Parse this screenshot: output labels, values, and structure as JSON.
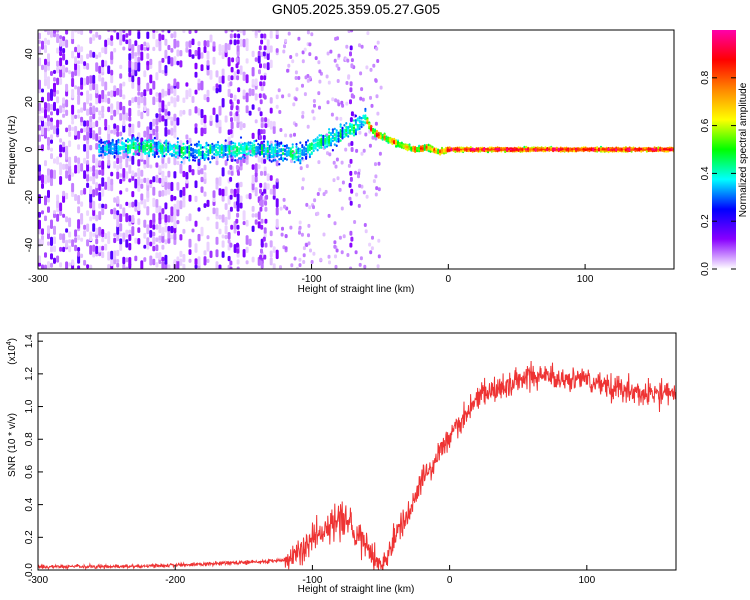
{
  "title": "GN05.2025.359.05.27.G05",
  "chart_data": [
    {
      "type": "heatmap",
      "name": "spectrogram",
      "xlabel": "Height of straight line (km)",
      "ylabel": "Frequency (Hz)",
      "xlim": [
        -300,
        165
      ],
      "ylim": [
        -50,
        50
      ],
      "xticks": [
        -300,
        -200,
        -100,
        0,
        100
      ],
      "yticks": [
        -40,
        -20,
        0,
        20,
        40
      ],
      "colorbar": {
        "label": "Normalized spectral amplitude",
        "range": [
          0,
          1
        ],
        "ticks": [
          0.0,
          0.2,
          0.4,
          0.6,
          0.8
        ],
        "tick_labels": [
          "0.0",
          "0.2",
          "0.4",
          "0.6",
          "0.8"
        ],
        "colormap": [
          "#ffffff",
          "#8800ff",
          "#0000ff",
          "#00ffff",
          "#00ff00",
          "#ffff00",
          "#ff8800",
          "#ff0000",
          "#ff00aa"
        ]
      },
      "ridge": {
        "x": [
          -255,
          -240,
          -220,
          -200,
          -180,
          -160,
          -140,
          -125,
          -110,
          -95,
          -80,
          -70,
          -62,
          -55,
          -48,
          -40,
          -32,
          -24,
          -16,
          -8,
          0,
          20,
          50,
          100,
          165
        ],
        "y": [
          0,
          1,
          1,
          0,
          -1,
          0,
          0,
          -1,
          -2,
          3,
          6,
          9,
          13,
          7,
          5,
          3,
          1,
          0,
          1,
          -1,
          0,
          0,
          0,
          0,
          0
        ]
      }
    },
    {
      "type": "line",
      "name": "snr",
      "xlabel": "Height of straight line (km)",
      "ylabel": "SNR (10 * v/v)",
      "ylabel_multiplier": "(x10",
      "ylabel_exponent": "4",
      "ylabel_multiplier_close": ")",
      "xlim": [
        -300,
        165
      ],
      "ylim": [
        0,
        1.45
      ],
      "xticks": [
        -300,
        -200,
        -100,
        0,
        100
      ],
      "yticks": [
        0.0,
        0.2,
        0.4,
        0.6,
        0.8,
        1.0,
        1.2,
        1.4
      ],
      "ytick_labels": [
        "0.0",
        "0.2",
        "0.4",
        "0.6",
        "0.8",
        "1.0",
        "1.2",
        "1.4"
      ],
      "color": "#ee3333",
      "x": [
        -300,
        -250,
        -200,
        -170,
        -140,
        -120,
        -110,
        -100,
        -90,
        -80,
        -70,
        -60,
        -55,
        -50,
        -45,
        -40,
        -35,
        -30,
        -25,
        -20,
        -15,
        -10,
        -5,
        0,
        5,
        10,
        15,
        20,
        25,
        30,
        40,
        50,
        60,
        70,
        80,
        90,
        100,
        110,
        120,
        130,
        140,
        150,
        165
      ],
      "y": [
        0.02,
        0.02,
        0.03,
        0.04,
        0.05,
        0.06,
        0.1,
        0.18,
        0.25,
        0.3,
        0.25,
        0.16,
        0.08,
        0.03,
        0.08,
        0.2,
        0.28,
        0.35,
        0.45,
        0.56,
        0.62,
        0.68,
        0.76,
        0.82,
        0.88,
        0.93,
        1.0,
        1.05,
        1.08,
        1.1,
        1.12,
        1.16,
        1.18,
        1.17,
        1.16,
        1.17,
        1.16,
        1.13,
        1.12,
        1.1,
        1.09,
        1.08,
        1.07
      ]
    }
  ]
}
